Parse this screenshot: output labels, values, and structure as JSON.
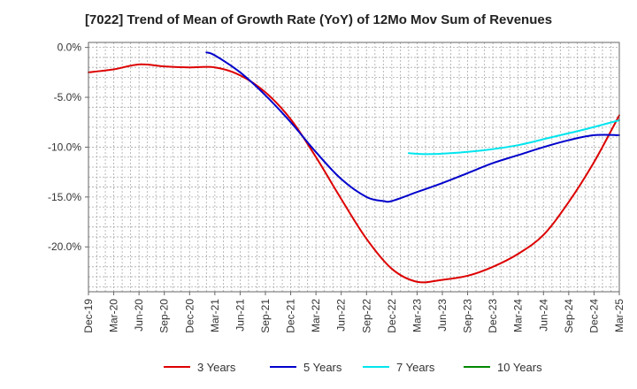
{
  "chart_data": {
    "type": "line",
    "title": "[7022]  Trend of Mean of Growth Rate (YoY) of 12Mo Mov Sum of Revenues",
    "xlabel": "",
    "ylabel": "",
    "ylim": [
      -24.5,
      0.5
    ],
    "yticks": [
      0,
      -5,
      -10,
      -15,
      -20
    ],
    "ytick_labels": [
      "0.0%",
      "-5.0%",
      "-10.0%",
      "-15.0%",
      "-20.0%"
    ],
    "x_start": "Dec-19",
    "x_end": "Mar-25",
    "xtick_labels": [
      "Dec-19",
      "Mar-20",
      "Jun-20",
      "Sep-20",
      "Dec-20",
      "Mar-21",
      "Jun-21",
      "Sep-21",
      "Dec-21",
      "Mar-22",
      "Jun-22",
      "Sep-22",
      "Dec-22",
      "Mar-23",
      "Jun-23",
      "Sep-23",
      "Dec-23",
      "Mar-24",
      "Jun-24",
      "Sep-24",
      "Dec-24",
      "Mar-25"
    ],
    "grid": true,
    "legend_position": "bottom",
    "series": [
      {
        "name": "3 Years",
        "color": "#dd0000",
        "points": [
          [
            0,
            -2.5
          ],
          [
            3,
            -2.2
          ],
          [
            6,
            -1.7
          ],
          [
            9,
            -1.9
          ],
          [
            12,
            -2.0
          ],
          [
            15,
            -2.0
          ],
          [
            18,
            -2.8
          ],
          [
            21,
            -4.5
          ],
          [
            24,
            -7.2
          ],
          [
            27,
            -11.0
          ],
          [
            30,
            -15.2
          ],
          [
            33,
            -19.2
          ],
          [
            36,
            -22.2
          ],
          [
            39,
            -23.5
          ],
          [
            42,
            -23.3
          ],
          [
            45,
            -22.9
          ],
          [
            48,
            -22.0
          ],
          [
            51,
            -20.7
          ],
          [
            54,
            -18.8
          ],
          [
            57,
            -15.5
          ],
          [
            60,
            -11.5
          ],
          [
            63,
            -6.8
          ]
        ]
      },
      {
        "name": "5 Years",
        "color": "#0000cc",
        "points": [
          [
            14,
            -0.5
          ],
          [
            15,
            -0.8
          ],
          [
            18,
            -2.5
          ],
          [
            21,
            -4.8
          ],
          [
            24,
            -7.5
          ],
          [
            27,
            -10.5
          ],
          [
            30,
            -13.2
          ],
          [
            33,
            -15.0
          ],
          [
            35,
            -15.4
          ],
          [
            36,
            -15.4
          ],
          [
            39,
            -14.5
          ],
          [
            42,
            -13.6
          ],
          [
            45,
            -12.6
          ],
          [
            48,
            -11.6
          ],
          [
            51,
            -10.8
          ],
          [
            54,
            -10.0
          ],
          [
            57,
            -9.3
          ],
          [
            60,
            -8.8
          ],
          [
            63,
            -8.8
          ]
        ]
      },
      {
        "name": "7 Years",
        "color": "#00e5ee",
        "points": [
          [
            38,
            -10.6
          ],
          [
            40,
            -10.7
          ],
          [
            43,
            -10.6
          ],
          [
            47,
            -10.3
          ],
          [
            51,
            -9.8
          ],
          [
            55,
            -9.0
          ],
          [
            59,
            -8.2
          ],
          [
            63,
            -7.3
          ]
        ]
      },
      {
        "name": "10 Years",
        "color": "#008800",
        "points": []
      }
    ]
  }
}
